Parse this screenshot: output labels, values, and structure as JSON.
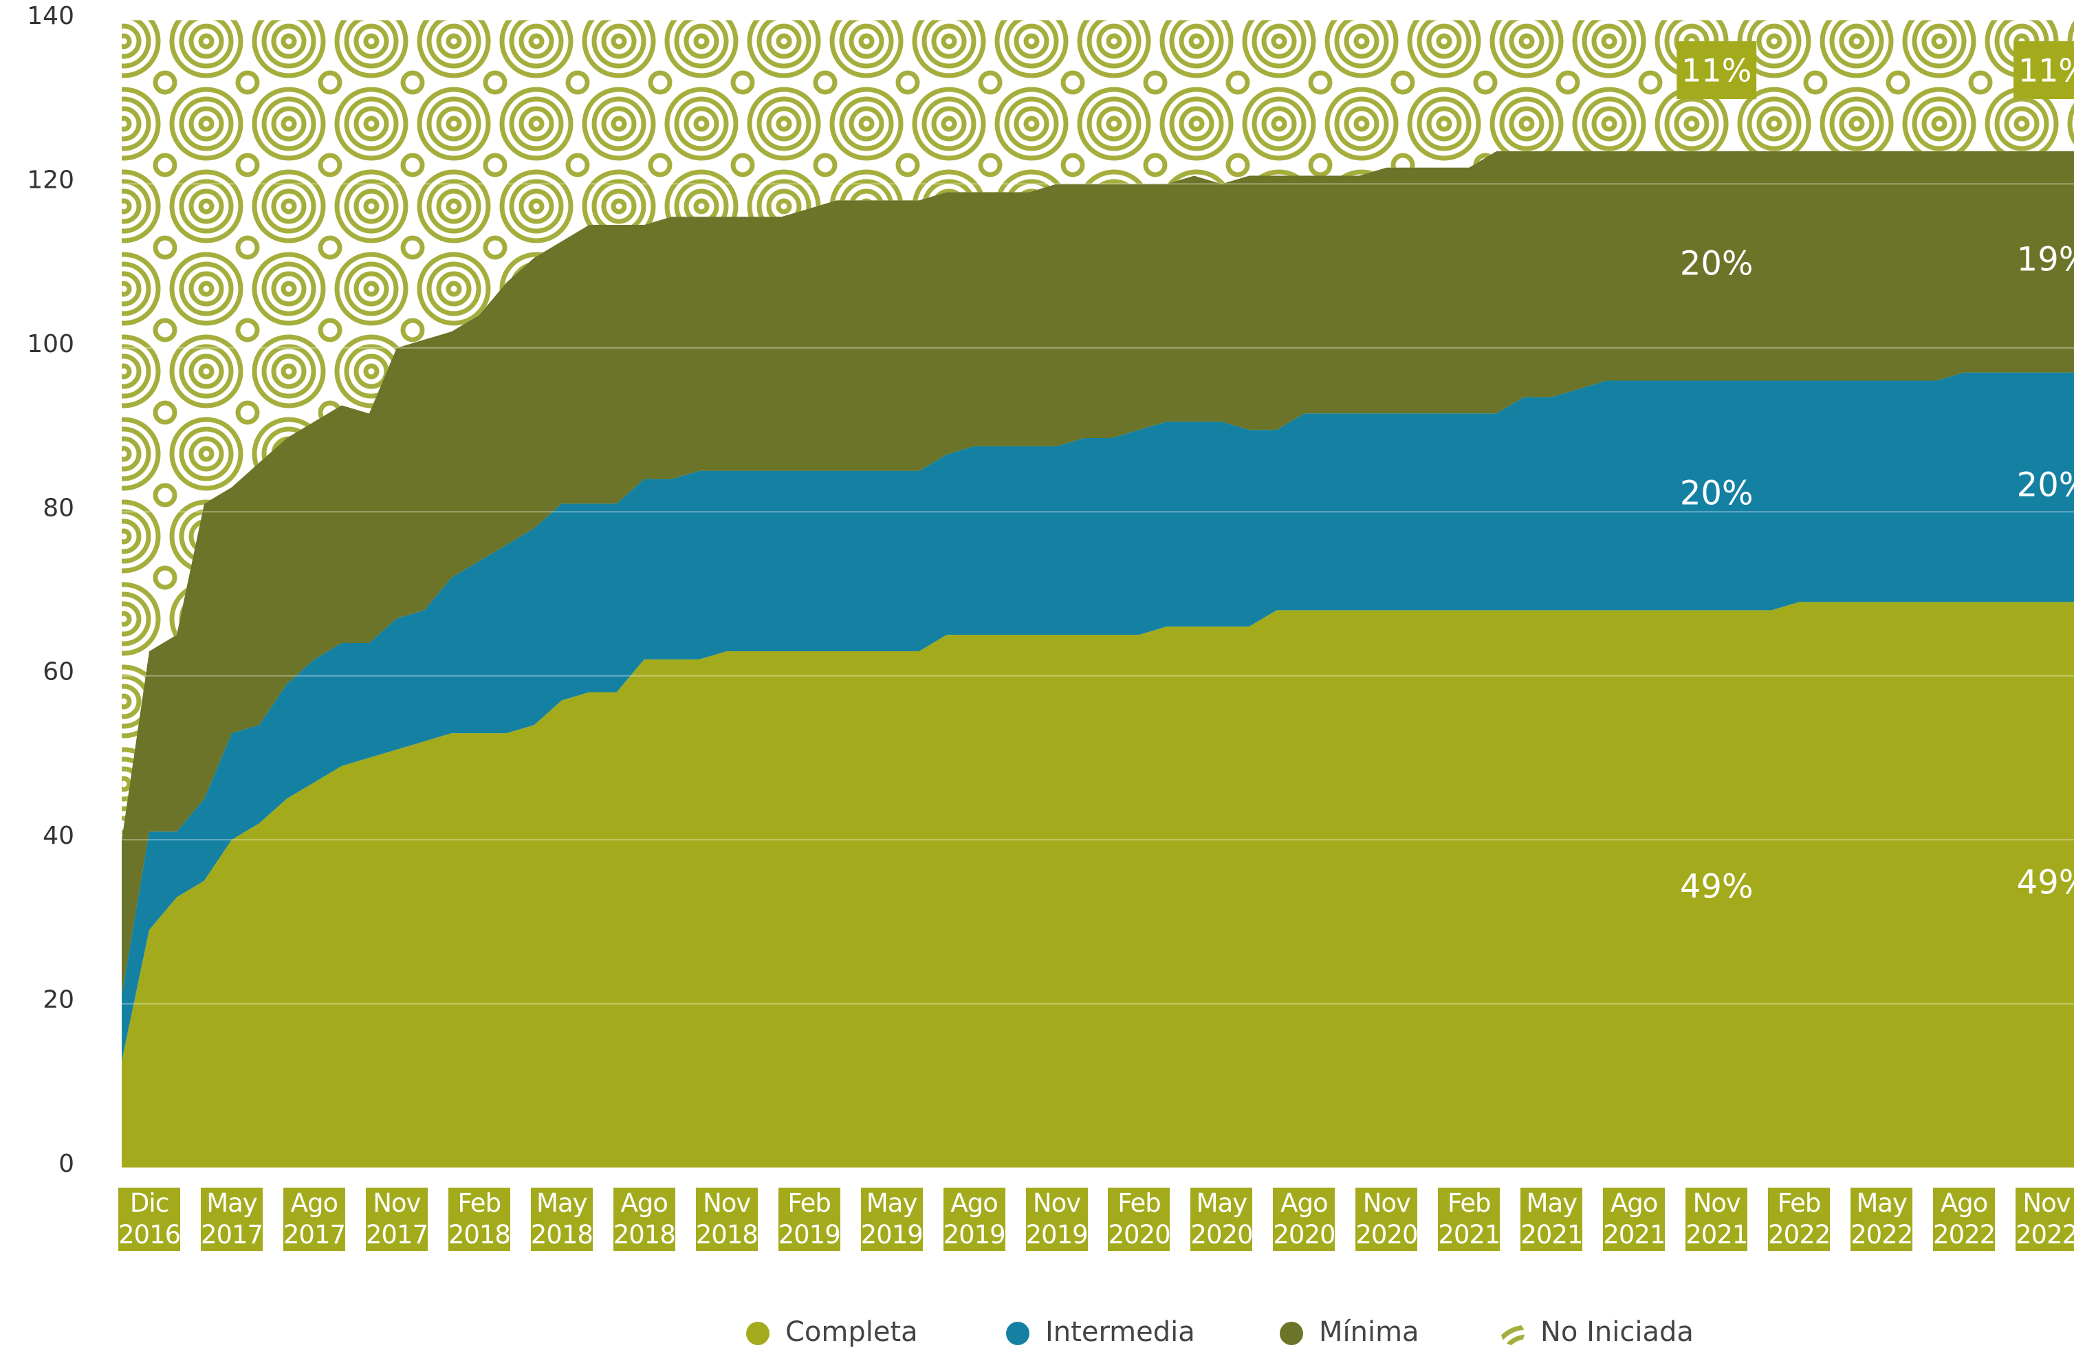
{
  "chart_data": {
    "type": "stacked_area",
    "categories": [
      null,
      "Dic 2016",
      null,
      null,
      "May 2017",
      null,
      null,
      "Ago 2017",
      null,
      null,
      "Nov 2017",
      null,
      null,
      "Feb 2018",
      null,
      null,
      "May 2018",
      null,
      null,
      "Ago 2018",
      null,
      null,
      "Nov 2018",
      null,
      null,
      "Feb 2019",
      null,
      null,
      "May 2019",
      null,
      null,
      "Ago 2019",
      null,
      null,
      "Nov 2019",
      null,
      null,
      "Feb 2020",
      null,
      null,
      "May 2020",
      null,
      null,
      "Ago 2020",
      null,
      null,
      "Nov 2020",
      null,
      null,
      "Feb 2021",
      null,
      null,
      "May 2021",
      null,
      null,
      "Ago 2021",
      null,
      null,
      "Nov 2021",
      null,
      null,
      "Feb 2022",
      null,
      null,
      "May 2022",
      null,
      null,
      "Ago 2022",
      null,
      null,
      "Nov 2022",
      null
    ],
    "series": [
      {
        "name": "Completa",
        "color": "#a3ab1d",
        "labels": [
          "49%",
          "49%"
        ],
        "values": [
          13,
          29,
          33,
          35,
          40,
          42,
          45,
          47,
          49,
          50,
          51,
          52,
          53,
          53,
          53,
          54,
          57,
          58,
          58,
          62,
          62,
          62,
          63,
          63,
          63,
          63,
          63,
          63,
          63,
          63,
          65,
          65,
          65,
          65,
          65,
          65,
          65,
          65,
          66,
          66,
          66,
          66,
          68,
          68,
          68,
          68,
          68,
          68,
          68,
          68,
          68,
          68,
          68,
          68,
          68,
          68,
          68,
          68,
          68,
          68,
          68,
          69,
          69,
          69,
          69,
          69,
          69,
          69,
          69,
          69,
          69,
          69
        ]
      },
      {
        "name": "Intermedia",
        "color": "#1481a3",
        "labels": [
          "20%",
          "20%"
        ],
        "values": [
          8,
          12,
          8,
          10,
          13,
          12,
          14,
          15,
          15,
          14,
          16,
          16,
          19,
          21,
          23,
          24,
          24,
          23,
          23,
          22,
          22,
          23,
          22,
          22,
          22,
          22,
          22,
          22,
          22,
          22,
          22,
          23,
          23,
          23,
          23,
          24,
          24,
          25,
          25,
          25,
          25,
          24,
          22,
          24,
          24,
          24,
          24,
          24,
          24,
          24,
          24,
          26,
          26,
          27,
          28,
          28,
          28,
          28,
          28,
          28,
          28,
          27,
          27,
          27,
          27,
          27,
          27,
          28,
          28,
          28,
          28,
          28
        ]
      },
      {
        "name": "Mínima",
        "color": "#6b7428",
        "labels": [
          "20%",
          "19%"
        ],
        "values": [
          19,
          22,
          24,
          36,
          30,
          32,
          30,
          29,
          29,
          28,
          33,
          33,
          30,
          30,
          32,
          33,
          32,
          34,
          34,
          31,
          32,
          31,
          31,
          31,
          31,
          32,
          33,
          33,
          33,
          33,
          32,
          31,
          31,
          31,
          32,
          31,
          31,
          30,
          29,
          30,
          29,
          31,
          31,
          29,
          29,
          29,
          30,
          30,
          30,
          30,
          32,
          30,
          30,
          29,
          28,
          28,
          28,
          28,
          28,
          28,
          28,
          28,
          28,
          28,
          28,
          28,
          28,
          27,
          27,
          27,
          27,
          27
        ]
      },
      {
        "name": "No Iniciada",
        "color": "#a5ae3c",
        "pattern": true,
        "labels": [
          "11%",
          "11%"
        ],
        "values": [
          100,
          77,
          75,
          59,
          57,
          54,
          51,
          49,
          47,
          48,
          40,
          39,
          38,
          36,
          32,
          29,
          27,
          25,
          25,
          25,
          24,
          24,
          24,
          24,
          24,
          23,
          22,
          22,
          22,
          22,
          21,
          21,
          21,
          21,
          20,
          20,
          20,
          20,
          20,
          19,
          20,
          19,
          19,
          19,
          19,
          19,
          18,
          18,
          18,
          18,
          16,
          16,
          16,
          16,
          16,
          16,
          16,
          16,
          16,
          16,
          16,
          16,
          16,
          16,
          16,
          16,
          16,
          16,
          16,
          16,
          16,
          16
        ]
      }
    ],
    "ylim": [
      0,
      140
    ],
    "yticks": [
      0,
      20,
      40,
      60,
      80,
      100,
      120,
      140
    ],
    "grid": true,
    "legend": "bottom"
  }
}
